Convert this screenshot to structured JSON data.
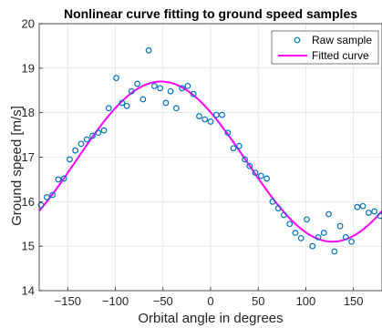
{
  "chart_data": {
    "type": "scatter",
    "title": "Nonlinear curve fitting to ground speed samples",
    "xlabel": "Orbital angle in degrees",
    "ylabel": "Ground speed [m/s]",
    "xlim": [
      -180,
      180
    ],
    "ylim": [
      14,
      20
    ],
    "xticks": [
      -150,
      -100,
      -50,
      0,
      50,
      100,
      150
    ],
    "yticks": [
      14,
      15,
      16,
      17,
      18,
      19,
      20
    ],
    "grid": true,
    "legend_position": "top-right",
    "series": [
      {
        "name": "Raw sample",
        "kind": "markers",
        "color": "#0072BD",
        "points": [
          [
            -178,
            15.92
          ],
          [
            -172,
            16.1
          ],
          [
            -166,
            16.15
          ],
          [
            -160,
            16.5
          ],
          [
            -154,
            16.52
          ],
          [
            -148,
            16.95
          ],
          [
            -142,
            17.15
          ],
          [
            -136,
            17.3
          ],
          [
            -130,
            17.4
          ],
          [
            -124,
            17.48
          ],
          [
            -118,
            17.55
          ],
          [
            -112,
            17.6
          ],
          [
            -107,
            18.1
          ],
          [
            -99,
            18.78
          ],
          [
            -93,
            18.22
          ],
          [
            -88,
            18.15
          ],
          [
            -83,
            18.48
          ],
          [
            -77,
            18.65
          ],
          [
            -71,
            18.3
          ],
          [
            -65,
            19.4
          ],
          [
            -59,
            18.6
          ],
          [
            -53,
            18.55
          ],
          [
            -47,
            18.22
          ],
          [
            -42,
            18.48
          ],
          [
            -36,
            18.1
          ],
          [
            -30,
            18.55
          ],
          [
            -24,
            18.6
          ],
          [
            -18,
            18.42
          ],
          [
            -12,
            17.92
          ],
          [
            -6,
            17.85
          ],
          [
            0,
            17.8
          ],
          [
            6,
            17.95
          ],
          [
            12,
            17.95
          ],
          [
            18,
            17.55
          ],
          [
            24,
            17.2
          ],
          [
            30,
            17.25
          ],
          [
            36,
            16.95
          ],
          [
            41,
            16.8
          ],
          [
            47,
            16.65
          ],
          [
            53,
            16.58
          ],
          [
            59,
            16.52
          ],
          [
            65,
            16.0
          ],
          [
            71,
            15.85
          ],
          [
            77,
            15.7
          ],
          [
            83,
            15.5
          ],
          [
            89,
            15.3
          ],
          [
            95,
            15.18
          ],
          [
            101,
            15.6
          ],
          [
            107,
            15.0
          ],
          [
            113,
            15.2
          ],
          [
            119,
            15.3
          ],
          [
            124,
            15.72
          ],
          [
            130,
            14.88
          ],
          [
            136,
            15.45
          ],
          [
            142,
            15.2
          ],
          [
            148,
            15.1
          ],
          [
            154,
            15.88
          ],
          [
            160,
            15.9
          ],
          [
            166,
            15.75
          ],
          [
            172,
            15.78
          ],
          [
            178,
            15.68
          ]
        ]
      },
      {
        "name": "Fitted curve",
        "kind": "line",
        "color": "#FF00FF",
        "model": {
          "offset": 16.9,
          "amplitude": 1.8,
          "peak_x": -52
        }
      }
    ]
  }
}
